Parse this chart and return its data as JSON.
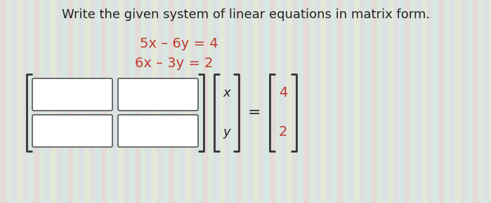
{
  "title": "Write the given system of linear equations in matrix form.",
  "eq1": "5x – 6y = 4",
  "eq2": "6x – 3y = 2",
  "eq_color": "#c0392b",
  "title_color": "#222222",
  "bg_color": "#dde8e0",
  "stripe_colors": [
    "#e8d8d8",
    "#d8e8d8",
    "#d8d8e8",
    "#e8e8d8"
  ],
  "box_color": "#ffffff",
  "box_edge_color": "#555555",
  "bracket_color": "#333333",
  "rhs_color": "#c0392b",
  "title_fontsize": 13,
  "eq_fontsize": 14
}
